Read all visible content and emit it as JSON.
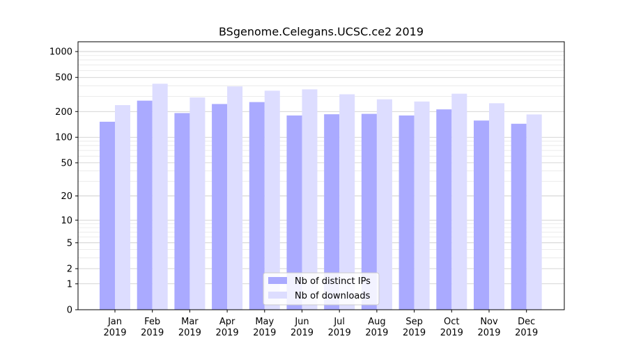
{
  "chart_data": {
    "type": "bar",
    "title": "BSgenome.Celegans.UCSC.ce2 2019",
    "xlabel": "",
    "ylabel": "",
    "categories": [
      [
        "Jan",
        "2019"
      ],
      [
        "Feb",
        "2019"
      ],
      [
        "Mar",
        "2019"
      ],
      [
        "Apr",
        "2019"
      ],
      [
        "May",
        "2019"
      ],
      [
        "Jun",
        "2019"
      ],
      [
        "Jul",
        "2019"
      ],
      [
        "Aug",
        "2019"
      ],
      [
        "Sep",
        "2019"
      ],
      [
        "Oct",
        "2019"
      ],
      [
        "Nov",
        "2019"
      ],
      [
        "Dec",
        "2019"
      ]
    ],
    "series": [
      {
        "name": "Nb of distinct IPs",
        "color": "#aaaaff",
        "values": [
          152,
          268,
          192,
          245,
          258,
          180,
          186,
          188,
          180,
          212,
          157,
          144
        ]
      },
      {
        "name": "Nb of downloads",
        "color": "#ddddff",
        "values": [
          238,
          422,
          292,
          393,
          350,
          363,
          318,
          278,
          262,
          323,
          250,
          185
        ]
      }
    ],
    "yscale": "log1p",
    "ylim": [
      0,
      1300
    ],
    "yticks": [
      0,
      1,
      2,
      5,
      10,
      20,
      50,
      100,
      200,
      500,
      1000
    ],
    "ytick_labels": [
      "0",
      "1",
      "2",
      "5",
      "10",
      "20",
      "50",
      "100",
      "200",
      "500",
      "1000"
    ],
    "grid": true,
    "legend_position": "bottom-center"
  }
}
